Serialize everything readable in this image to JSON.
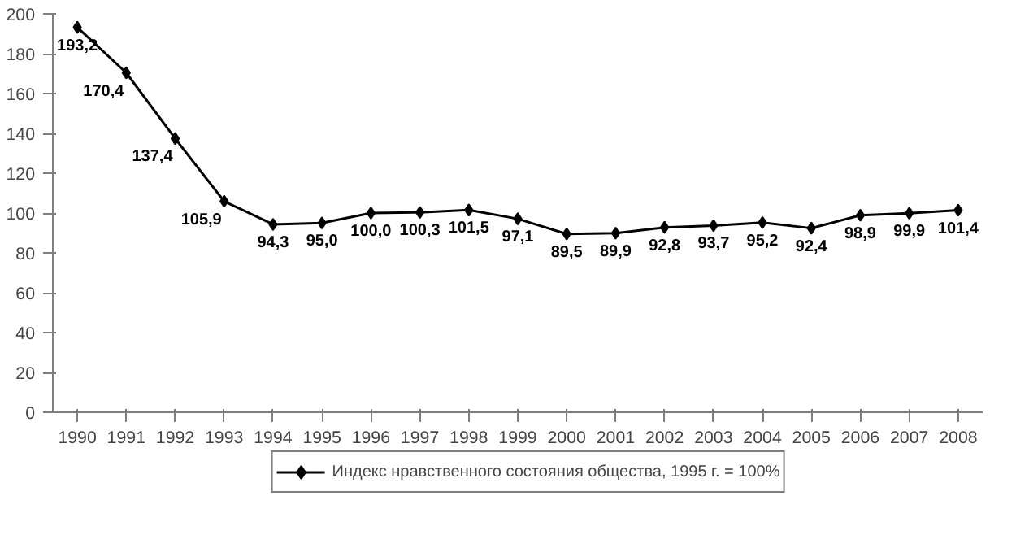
{
  "chart_data": {
    "type": "line",
    "categories": [
      "1990",
      "1991",
      "1992",
      "1993",
      "1994",
      "1995",
      "1996",
      "1997",
      "1998",
      "1999",
      "2000",
      "2001",
      "2002",
      "2003",
      "2004",
      "2005",
      "2006",
      "2007",
      "2008"
    ],
    "series": [
      {
        "name": "Индекс нравственного состояния общества, 1995 г. = 100%",
        "color": "#000000",
        "values": [
          193.2,
          170.4,
          137.4,
          105.9,
          94.3,
          95.0,
          100.0,
          100.3,
          101.5,
          97.1,
          89.5,
          89.9,
          92.8,
          93.7,
          95.2,
          92.4,
          98.9,
          99.9,
          101.4
        ],
        "value_labels": [
          "193,2",
          "170,4",
          "137,4",
          "105,9",
          "94,3",
          "95,0",
          "100,0",
          "100,3",
          "101,5",
          "97,1",
          "89,5",
          "89,9",
          "92,8",
          "93,7",
          "95,2",
          "92,4",
          "98,9",
          "99,9",
          "101,4"
        ]
      }
    ],
    "ylim": [
      0,
      200
    ],
    "yticks": [
      0,
      20,
      40,
      60,
      80,
      100,
      120,
      140,
      160,
      180,
      200
    ],
    "grid": false,
    "legend": "bottom",
    "marker": "diamond",
    "line_style": "solid"
  }
}
